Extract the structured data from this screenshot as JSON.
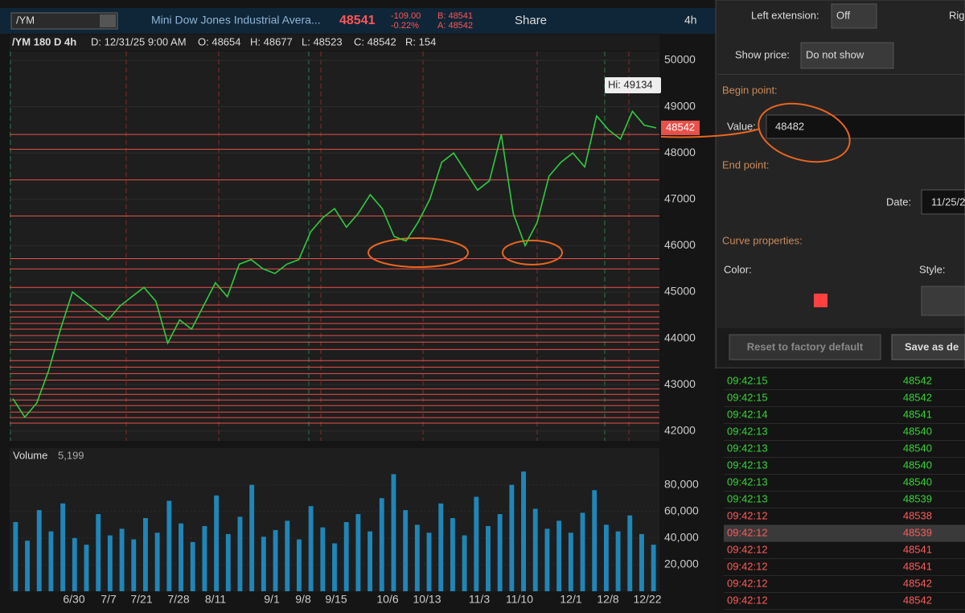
{
  "toolbar": {
    "symbol": "/YM",
    "description": "Mini Dow Jones Industrial Avera...",
    "last": "48541",
    "change": "-109.00",
    "change_pct": "-0.22%",
    "bid": "B: 48541",
    "ask": "A: 48542",
    "share": "Share",
    "timeframe": "4h"
  },
  "chart_info": {
    "symbol": "/YM 180 D 4h",
    "date": "D: 12/31/25 9:00 AM",
    "open": "O: 48654",
    "high": "H: 48677",
    "low": "L: 48523",
    "close": "C: 48542",
    "range": "R: 154"
  },
  "price_chart": {
    "ylim": [
      41823,
      50573
    ],
    "yticks": [
      42000,
      43000,
      44000,
      45000,
      46000,
      47000,
      48000,
      49000,
      50000
    ],
    "up_color": "#2ecc40",
    "level_color": "#e8504a",
    "hi_label": "Hi: 49134",
    "last_price": 48542,
    "levels": [
      48400,
      48080,
      47420,
      46640,
      45720,
      45500,
      45100,
      44720,
      44580,
      44460,
      44320,
      44200,
      44060,
      43920,
      43760,
      43520,
      43380,
      43240,
      43100,
      42910,
      42790,
      42670,
      42550,
      42410,
      42290,
      42170
    ],
    "values": [
      42700,
      42300,
      42600,
      43300,
      44200,
      45000,
      44800,
      44600,
      44400,
      44700,
      44900,
      45100,
      44800,
      43900,
      44400,
      44200,
      44700,
      45200,
      44900,
      45600,
      45700,
      45500,
      45400,
      45600,
      45700,
      46300,
      46600,
      46800,
      46400,
      46700,
      47100,
      46800,
      46200,
      46100,
      46500,
      47000,
      47800,
      48000,
      47600,
      47200,
      47400,
      48400,
      46700,
      46000,
      46500,
      47500,
      47800,
      48000,
      47700,
      48800,
      48500,
      48300,
      48900,
      48600,
      48542
    ]
  },
  "volume_chart": {
    "label": "Volume",
    "last": "5,199",
    "color": "#1f86b8",
    "ylim": [
      0,
      107000
    ],
    "yticks": [
      {
        "value": 20000,
        "label": "20,000"
      },
      {
        "value": 40000,
        "label": "40,000"
      },
      {
        "value": 60000,
        "label": "60,000"
      },
      {
        "value": 80000,
        "label": "80,000"
      }
    ],
    "values": [
      52000,
      38000,
      61000,
      45000,
      66000,
      40000,
      35000,
      58000,
      42000,
      47000,
      39000,
      55000,
      44000,
      68000,
      51000,
      37000,
      49000,
      72000,
      43000,
      56000,
      80000,
      41000,
      46000,
      53000,
      39000,
      64000,
      48000,
      36000,
      52000,
      58000,
      45000,
      70000,
      88000,
      61000,
      50000,
      44000,
      66000,
      55000,
      42000,
      71000,
      49000,
      58000,
      80000,
      90000,
      62000,
      47000,
      53000,
      44000,
      59000,
      76000,
      50000,
      45000,
      57000,
      43000,
      35000
    ],
    "x_labels": [
      "6/30",
      "7/7",
      "7/21",
      "7/28",
      "8/11",
      "9/1",
      "9/8",
      "9/15",
      "10/6",
      "10/13",
      "11/3",
      "11/10",
      "12/1",
      "12/8",
      "12/22"
    ]
  },
  "dialog": {
    "left_extension_label": "Left extension:",
    "left_extension": "Off",
    "right_cut": "Rig",
    "show_price_label": "Show price:",
    "show_price": "Do not show",
    "begin_point": "Begin point:",
    "value_label": "Value:",
    "value": "48482",
    "end_point": "End point:",
    "date_label": "Date:",
    "date": "11/25/2",
    "curve_properties": "Curve properties:",
    "color_label": "Color:",
    "style_label": "Style:",
    "reset": "Reset to factory default",
    "save": "Save as de"
  },
  "time_sales": {
    "up_color": "#36d436",
    "down_color": "#ff5a5a",
    "rows": [
      {
        "time": "09:42:15",
        "price": "48542",
        "dir": "up"
      },
      {
        "time": "09:42:15",
        "price": "48542",
        "dir": "up"
      },
      {
        "time": "09:42:14",
        "price": "48541",
        "dir": "up"
      },
      {
        "time": "09:42:13",
        "price": "48540",
        "dir": "up"
      },
      {
        "time": "09:42:13",
        "price": "48540",
        "dir": "up"
      },
      {
        "time": "09:42:13",
        "price": "48540",
        "dir": "up"
      },
      {
        "time": "09:42:13",
        "price": "48540",
        "dir": "up"
      },
      {
        "time": "09:42:13",
        "price": "48539",
        "dir": "up"
      },
      {
        "time": "09:42:12",
        "price": "48538",
        "dir": "down"
      },
      {
        "time": "09:42:12",
        "price": "48539",
        "dir": "down",
        "selected": true
      },
      {
        "time": "09:42:12",
        "price": "48541",
        "dir": "down"
      },
      {
        "time": "09:42:12",
        "price": "48541",
        "dir": "down"
      },
      {
        "time": "09:42:12",
        "price": "48542",
        "dir": "down"
      },
      {
        "time": "09:42:12",
        "price": "48542",
        "dir": "down"
      }
    ]
  }
}
